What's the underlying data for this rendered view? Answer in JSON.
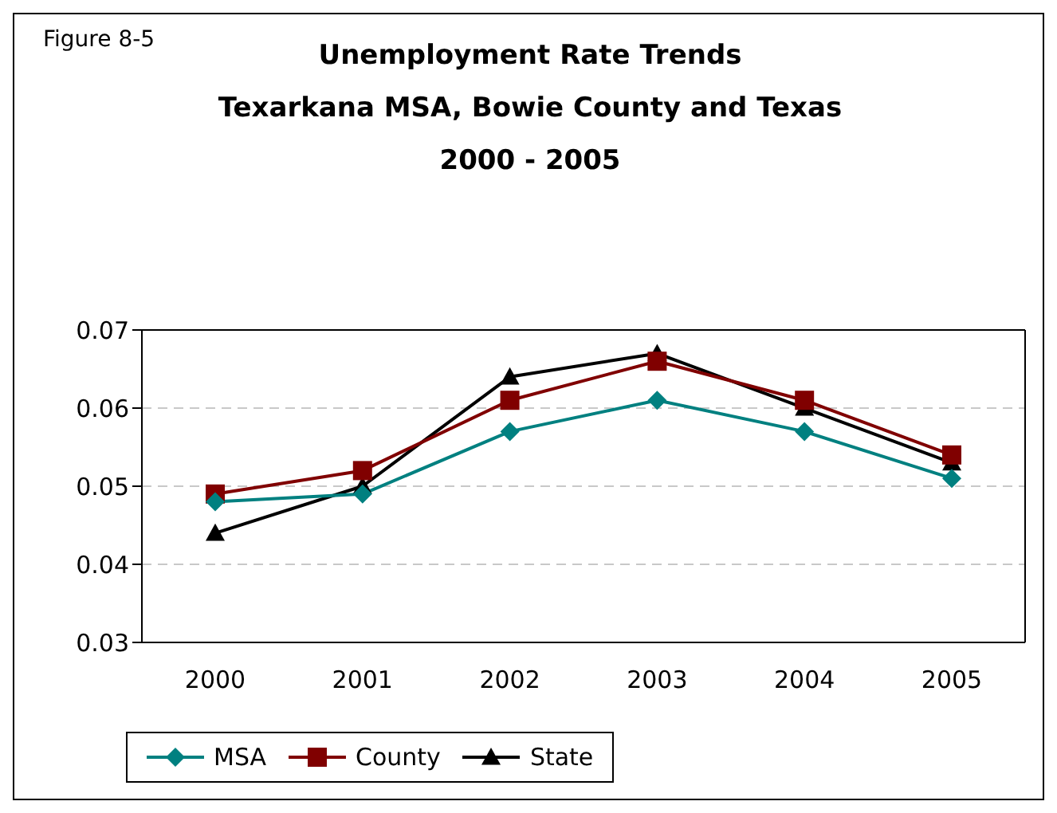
{
  "chart_data": {
    "type": "line",
    "title": "Unemployment Rate Trends",
    "subtitle": "Texarkana MSA, Bowie County and Texas\n2000 - 2005",
    "annotations": [
      "Figure 8-5"
    ],
    "categories": [
      "2000",
      "2001",
      "2002",
      "2003",
      "2004",
      "2005"
    ],
    "series": [
      {
        "name": "MSA",
        "color": "#008080",
        "marker": "diamond",
        "values": [
          0.048,
          0.049,
          0.057,
          0.061,
          0.057,
          0.051
        ]
      },
      {
        "name": "County",
        "color": "#800000",
        "marker": "square",
        "values": [
          0.049,
          0.052,
          0.061,
          0.066,
          0.061,
          0.054
        ]
      },
      {
        "name": "State",
        "color": "#000000",
        "marker": "triangle",
        "values": [
          0.044,
          0.05,
          0.064,
          0.067,
          0.06,
          0.053
        ]
      }
    ],
    "ylim": [
      0.03,
      0.07
    ],
    "yticks": [
      0.03,
      0.04,
      0.05,
      0.06,
      0.07
    ],
    "grid": "y",
    "legend": "bottom",
    "line_style": "solid"
  }
}
